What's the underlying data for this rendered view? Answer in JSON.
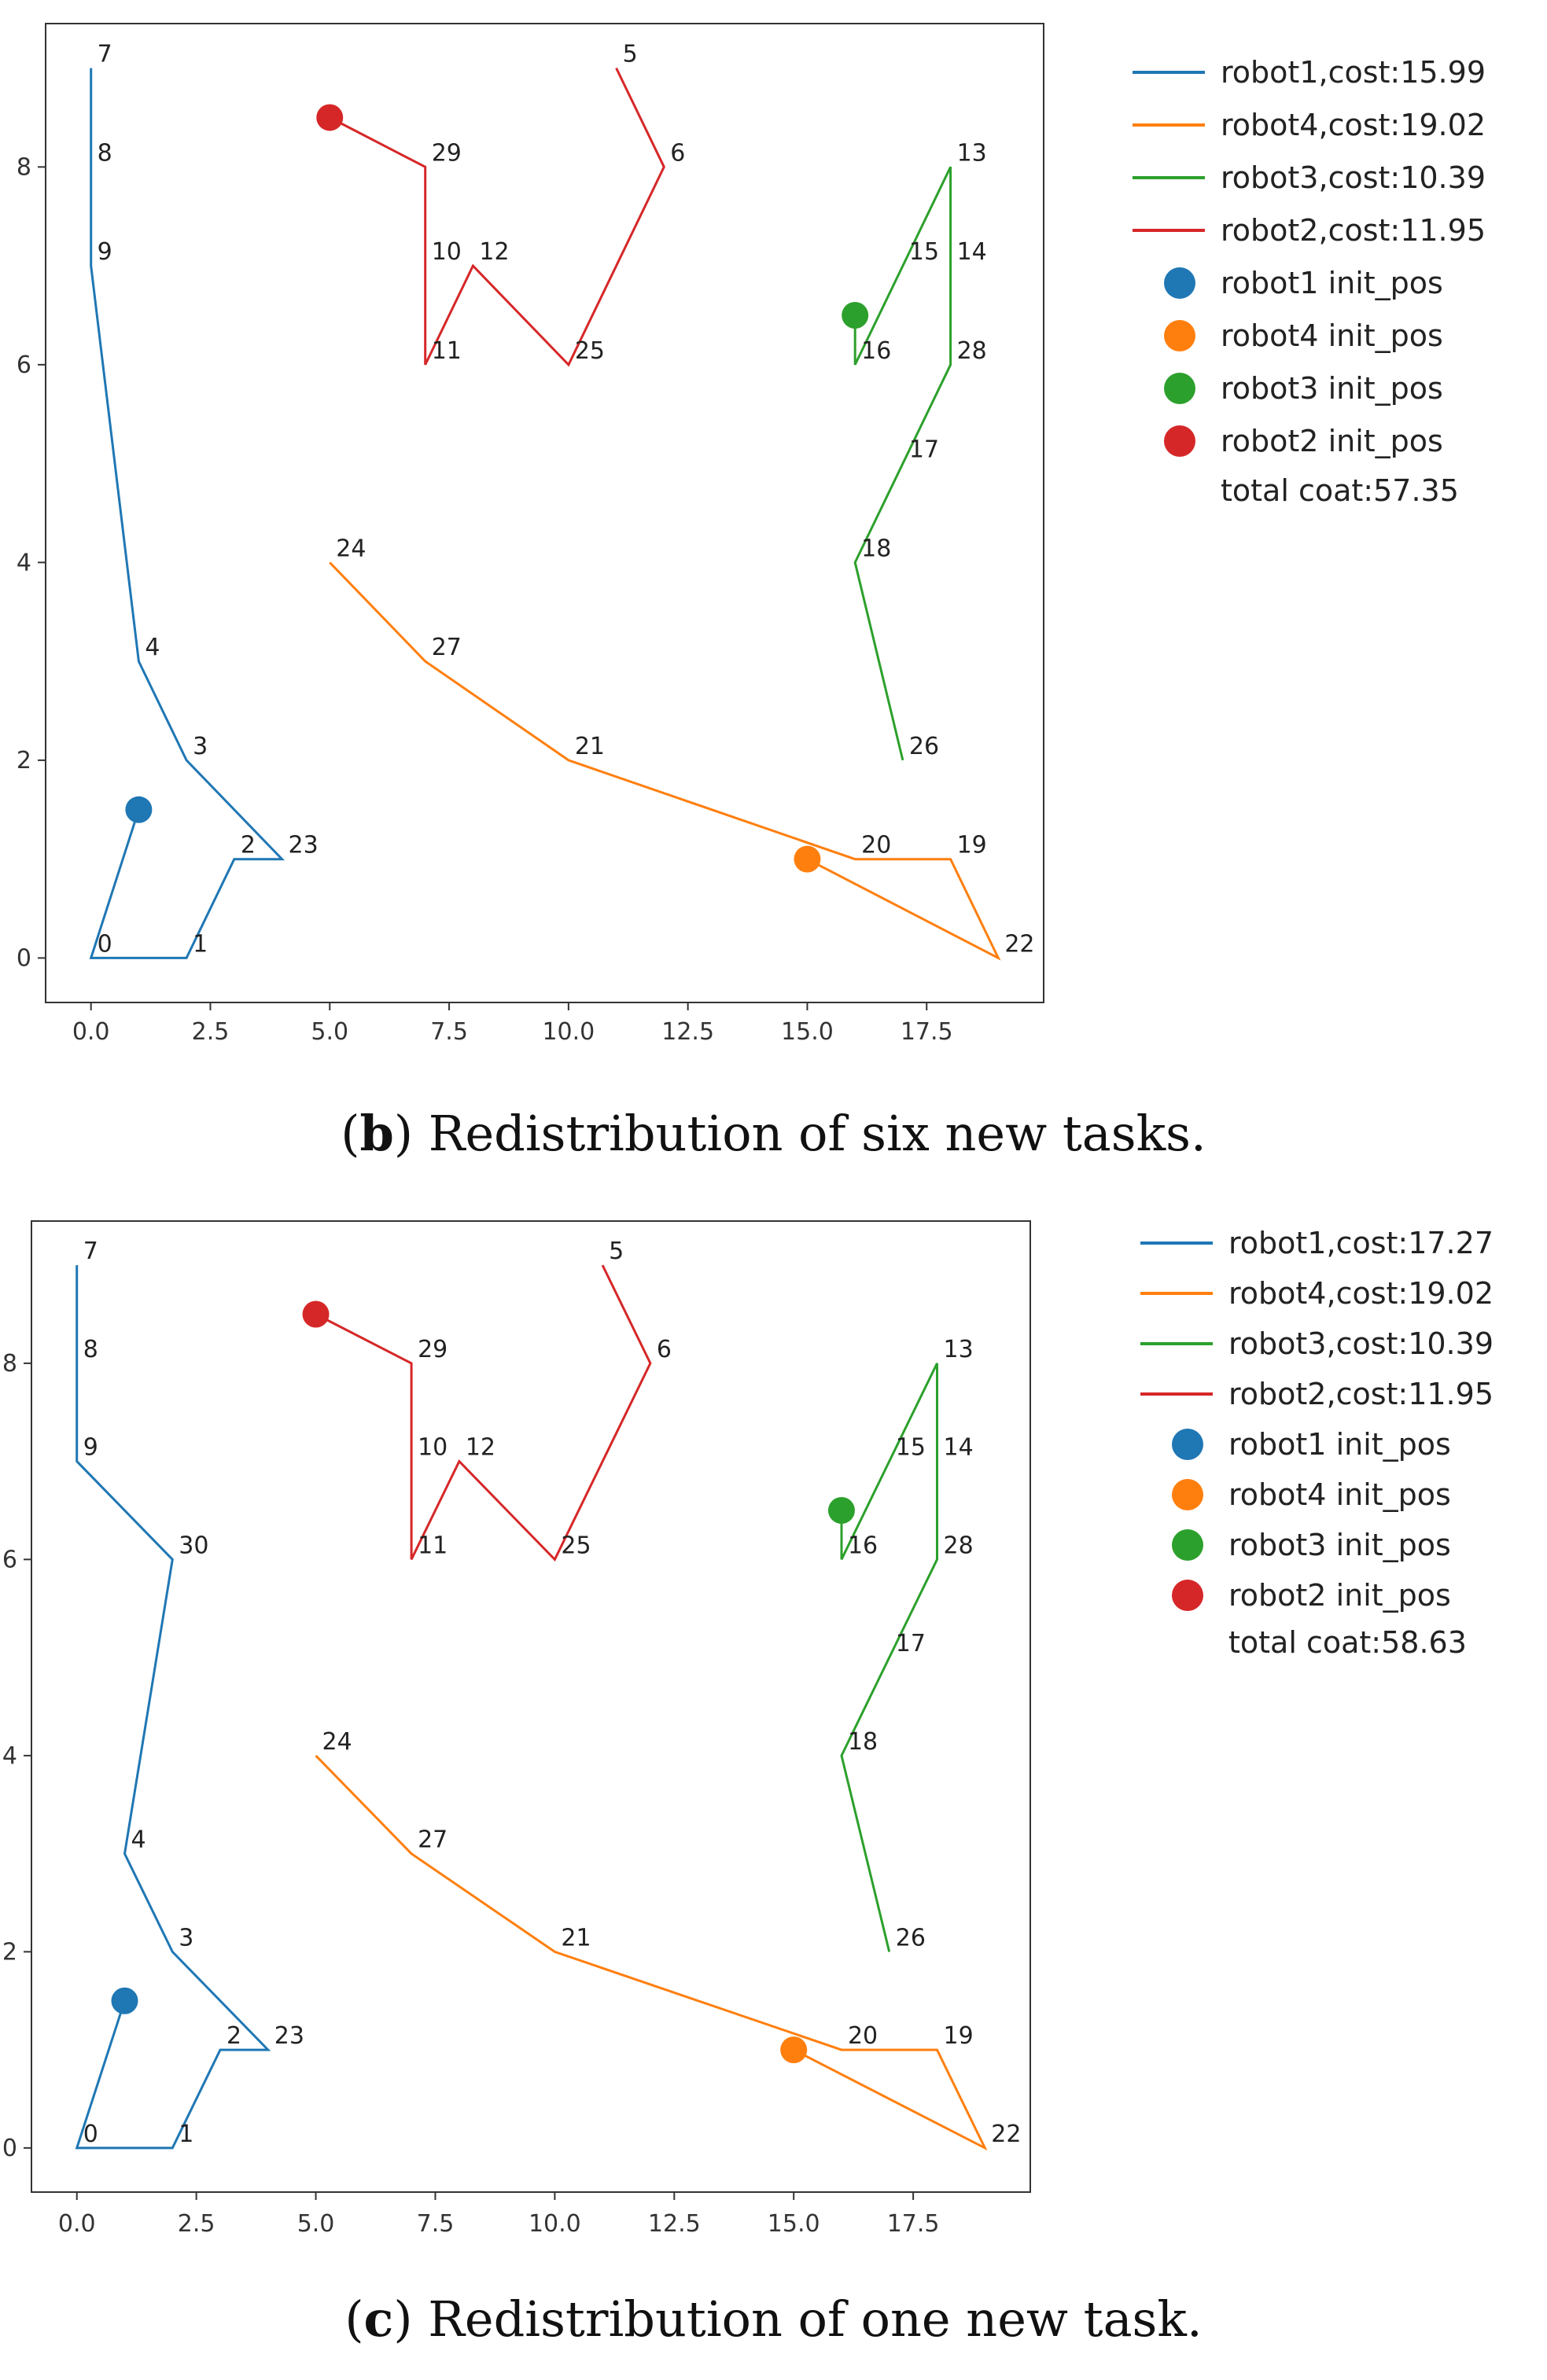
{
  "chart_data": [
    {
      "type": "line",
      "panel": "b",
      "caption_letter": "b",
      "caption_text": "Redistribution of six new tasks.",
      "xlim": [
        -0.95,
        19.95
      ],
      "ylim": [
        -0.45,
        9.45
      ],
      "xticks": [
        0.0,
        2.5,
        5.0,
        7.5,
        10.0,
        12.5,
        15.0,
        17.5
      ],
      "xtick_labels": [
        "0.0",
        "2.5",
        "5.0",
        "7.5",
        "10.0",
        "12.5",
        "15.0",
        "17.5"
      ],
      "yticks": [
        0,
        2,
        4,
        6,
        8
      ],
      "ytick_labels": [
        "0",
        "2",
        "4",
        "6",
        "8"
      ],
      "series": [
        {
          "name": "robot1,cost:15.99",
          "color": "#1f77b4",
          "points": [
            [
              1,
              1.5
            ],
            [
              0,
              0
            ],
            [
              2,
              0
            ],
            [
              3,
              1
            ],
            [
              4,
              1
            ],
            [
              2,
              2
            ],
            [
              1,
              3
            ],
            [
              0,
              7
            ],
            [
              0,
              8
            ],
            [
              0,
              9
            ]
          ]
        },
        {
          "name": "robot4,cost:19.02",
          "color": "#ff7f0e",
          "points": [
            [
              15,
              1
            ],
            [
              19,
              0
            ],
            [
              18,
              1
            ],
            [
              16,
              1
            ],
            [
              10,
              2
            ],
            [
              7,
              3
            ],
            [
              5,
              4
            ]
          ]
        },
        {
          "name": "robot3,cost:10.39",
          "color": "#2ca02c",
          "points": [
            [
              16,
              6.5
            ],
            [
              16,
              6
            ],
            [
              17,
              7
            ],
            [
              18,
              8
            ],
            [
              18,
              7
            ],
            [
              18,
              6
            ],
            [
              17,
              5
            ],
            [
              16,
              4
            ],
            [
              17,
              2
            ]
          ]
        },
        {
          "name": "robot2,cost:11.95",
          "color": "#d62728",
          "points": [
            [
              5,
              8.5
            ],
            [
              7,
              8
            ],
            [
              7,
              6
            ],
            [
              8,
              7
            ],
            [
              10,
              6
            ],
            [
              12,
              8
            ],
            [
              11,
              9
            ]
          ]
        }
      ],
      "init_positions": [
        {
          "name": "robot1 init_pos",
          "color": "#1f77b4",
          "x": 1,
          "y": 1.5
        },
        {
          "name": "robot4 init_pos",
          "color": "#ff7f0e",
          "x": 15,
          "y": 1
        },
        {
          "name": "robot3 init_pos",
          "color": "#2ca02c",
          "x": 16,
          "y": 6.5
        },
        {
          "name": "robot2 init_pos",
          "color": "#d62728",
          "x": 5,
          "y": 8.5
        }
      ],
      "total_text": "total coat:57.35",
      "point_labels": [
        {
          "t": "0",
          "x": 0,
          "y": 0
        },
        {
          "t": "1",
          "x": 2,
          "y": 0
        },
        {
          "t": "2",
          "x": 3,
          "y": 1
        },
        {
          "t": "23",
          "x": 4,
          "y": 1
        },
        {
          "t": "3",
          "x": 2,
          "y": 2
        },
        {
          "t": "4",
          "x": 1,
          "y": 3
        },
        {
          "t": "9",
          "x": 0,
          "y": 7
        },
        {
          "t": "8",
          "x": 0,
          "y": 8
        },
        {
          "t": "7",
          "x": 0,
          "y": 9
        },
        {
          "t": "24",
          "x": 5,
          "y": 4
        },
        {
          "t": "27",
          "x": 7,
          "y": 3
        },
        {
          "t": "21",
          "x": 10,
          "y": 2
        },
        {
          "t": "20",
          "x": 16,
          "y": 1
        },
        {
          "t": "19",
          "x": 18,
          "y": 1
        },
        {
          "t": "22",
          "x": 19,
          "y": 0
        },
        {
          "t": "29",
          "x": 7,
          "y": 8
        },
        {
          "t": "10",
          "x": 7,
          "y": 7
        },
        {
          "t": "12",
          "x": 8,
          "y": 7
        },
        {
          "t": "11",
          "x": 7,
          "y": 6
        },
        {
          "t": "25",
          "x": 10,
          "y": 6
        },
        {
          "t": "6",
          "x": 12,
          "y": 8
        },
        {
          "t": "5",
          "x": 11,
          "y": 9
        },
        {
          "t": "13",
          "x": 18,
          "y": 8
        },
        {
          "t": "15",
          "x": 17,
          "y": 7
        },
        {
          "t": "14",
          "x": 18,
          "y": 7
        },
        {
          "t": "16",
          "x": 16,
          "y": 6
        },
        {
          "t": "28",
          "x": 18,
          "y": 6
        },
        {
          "t": "17",
          "x": 17,
          "y": 5
        },
        {
          "t": "18",
          "x": 16,
          "y": 4
        },
        {
          "t": "26",
          "x": 17,
          "y": 2
        }
      ]
    },
    {
      "type": "line",
      "panel": "c",
      "caption_letter": "c",
      "caption_text": "Redistribution of one new task.",
      "xlim": [
        -0.95,
        19.95
      ],
      "ylim": [
        -0.45,
        9.45
      ],
      "xticks": [
        0.0,
        2.5,
        5.0,
        7.5,
        10.0,
        12.5,
        15.0,
        17.5
      ],
      "xtick_labels": [
        "0.0",
        "2.5",
        "5.0",
        "7.5",
        "10.0",
        "12.5",
        "15.0",
        "17.5"
      ],
      "yticks": [
        0,
        2,
        4,
        6,
        8
      ],
      "ytick_labels": [
        "0",
        "2",
        "4",
        "6",
        "8"
      ],
      "series": [
        {
          "name": "robot1,cost:17.27",
          "color": "#1f77b4",
          "points": [
            [
              1,
              1.5
            ],
            [
              0,
              0
            ],
            [
              2,
              0
            ],
            [
              3,
              1
            ],
            [
              4,
              1
            ],
            [
              2,
              2
            ],
            [
              1,
              3
            ],
            [
              2,
              6
            ],
            [
              0,
              7
            ],
            [
              0,
              8
            ],
            [
              0,
              9
            ]
          ]
        },
        {
          "name": "robot4,cost:19.02",
          "color": "#ff7f0e",
          "points": [
            [
              15,
              1
            ],
            [
              19,
              0
            ],
            [
              18,
              1
            ],
            [
              16,
              1
            ],
            [
              10,
              2
            ],
            [
              7,
              3
            ],
            [
              5,
              4
            ]
          ]
        },
        {
          "name": "robot3,cost:10.39",
          "color": "#2ca02c",
          "points": [
            [
              16,
              6.5
            ],
            [
              16,
              6
            ],
            [
              17,
              7
            ],
            [
              18,
              8
            ],
            [
              18,
              7
            ],
            [
              18,
              6
            ],
            [
              17,
              5
            ],
            [
              16,
              4
            ],
            [
              17,
              2
            ]
          ]
        },
        {
          "name": "robot2,cost:11.95",
          "color": "#d62728",
          "points": [
            [
              5,
              8.5
            ],
            [
              7,
              8
            ],
            [
              7,
              6
            ],
            [
              8,
              7
            ],
            [
              10,
              6
            ],
            [
              12,
              8
            ],
            [
              11,
              9
            ]
          ]
        }
      ],
      "init_positions": [
        {
          "name": "robot1 init_pos",
          "color": "#1f77b4",
          "x": 1,
          "y": 1.5
        },
        {
          "name": "robot4 init_pos",
          "color": "#ff7f0e",
          "x": 15,
          "y": 1
        },
        {
          "name": "robot3 init_pos",
          "color": "#2ca02c",
          "x": 16,
          "y": 6.5
        },
        {
          "name": "robot2 init_pos",
          "color": "#d62728",
          "x": 5,
          "y": 8.5
        }
      ],
      "total_text": "total coat:58.63",
      "point_labels": [
        {
          "t": "0",
          "x": 0,
          "y": 0
        },
        {
          "t": "1",
          "x": 2,
          "y": 0
        },
        {
          "t": "2",
          "x": 3,
          "y": 1
        },
        {
          "t": "23",
          "x": 4,
          "y": 1
        },
        {
          "t": "3",
          "x": 2,
          "y": 2
        },
        {
          "t": "4",
          "x": 1,
          "y": 3
        },
        {
          "t": "30",
          "x": 2,
          "y": 6
        },
        {
          "t": "9",
          "x": 0,
          "y": 7
        },
        {
          "t": "8",
          "x": 0,
          "y": 8
        },
        {
          "t": "7",
          "x": 0,
          "y": 9
        },
        {
          "t": "24",
          "x": 5,
          "y": 4
        },
        {
          "t": "27",
          "x": 7,
          "y": 3
        },
        {
          "t": "21",
          "x": 10,
          "y": 2
        },
        {
          "t": "20",
          "x": 16,
          "y": 1
        },
        {
          "t": "19",
          "x": 18,
          "y": 1
        },
        {
          "t": "22",
          "x": 19,
          "y": 0
        },
        {
          "t": "29",
          "x": 7,
          "y": 8
        },
        {
          "t": "10",
          "x": 7,
          "y": 7
        },
        {
          "t": "12",
          "x": 8,
          "y": 7
        },
        {
          "t": "11",
          "x": 7,
          "y": 6
        },
        {
          "t": "25",
          "x": 10,
          "y": 6
        },
        {
          "t": "6",
          "x": 12,
          "y": 8
        },
        {
          "t": "5",
          "x": 11,
          "y": 9
        },
        {
          "t": "13",
          "x": 18,
          "y": 8
        },
        {
          "t": "15",
          "x": 17,
          "y": 7
        },
        {
          "t": "14",
          "x": 18,
          "y": 7
        },
        {
          "t": "16",
          "x": 16,
          "y": 6
        },
        {
          "t": "28",
          "x": 18,
          "y": 6
        },
        {
          "t": "17",
          "x": 17,
          "y": 5
        },
        {
          "t": "18",
          "x": 16,
          "y": 4
        },
        {
          "t": "26",
          "x": 17,
          "y": 2
        }
      ]
    }
  ]
}
